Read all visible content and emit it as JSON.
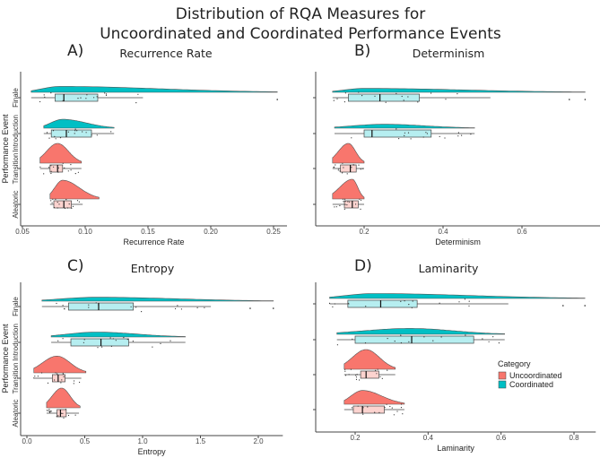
{
  "title_line1": "Distribution of RQA Measures for",
  "title_line2": "Uncoordinated and Coordinated Performance Events",
  "colors": {
    "Uncoordinated": "#F8766D",
    "Coordinated": "#00BFC4",
    "Uncoordinated_box": "#FCD3CF",
    "Coordinated_box": "#B6EEF0",
    "axis": "#444444"
  },
  "legend": {
    "title": "Category",
    "entries": [
      "Uncoordinated",
      "Coordinated"
    ],
    "placement": "right of panel D"
  },
  "chart_data": [
    {
      "type": "raincloud",
      "letter": "A)",
      "title": "Recurrence Rate",
      "xlabel": "Recurrence Rate",
      "ylabel": "Performance Event",
      "xlim": [
        0.05,
        0.255
      ],
      "ticks": [
        0.05,
        0.1,
        0.15,
        0.2,
        0.25
      ],
      "tick_labels": [
        "0.05",
        "0.10",
        "0.15",
        "0.20",
        "0.25"
      ],
      "groups": [
        {
          "name": "Finale",
          "category": "Coordinated",
          "min": 0.057,
          "q1": 0.076,
          "median": 0.083,
          "q3": 0.11,
          "max": 0.146,
          "outliers": [
            0.253
          ],
          "density_peak": 0.08,
          "density_range": [
            0.057,
            0.253
          ],
          "density_rel_height": 0.3
        },
        {
          "name": "Introduction",
          "category": "Coordinated",
          "min": 0.067,
          "q1": 0.073,
          "median": 0.085,
          "q3": 0.105,
          "max": 0.123,
          "outliers": [],
          "density_peak": 0.082,
          "density_range": [
            0.067,
            0.123
          ],
          "density_rel_height": 0.45
        },
        {
          "name": "Transition",
          "category": "Uncoordinated",
          "min": 0.064,
          "q1": 0.072,
          "median": 0.078,
          "q3": 0.082,
          "max": 0.097,
          "outliers": [],
          "density_peak": 0.078,
          "density_range": [
            0.064,
            0.097
          ],
          "density_rel_height": 1.0
        },
        {
          "name": "Aleatoric",
          "category": "Uncoordinated",
          "min": 0.072,
          "q1": 0.075,
          "median": 0.083,
          "q3": 0.089,
          "max": 0.098,
          "outliers": [],
          "density_peak": 0.082,
          "density_range": [
            0.072,
            0.111
          ],
          "density_rel_height": 0.95
        }
      ]
    },
    {
      "type": "raincloud",
      "letter": "B)",
      "title": "Determinism",
      "xlabel": "Determinism",
      "ylabel": "",
      "xlim": [
        0.1,
        0.78
      ],
      "ticks": [
        0.2,
        0.4,
        0.6
      ],
      "tick_labels": [
        "0.2",
        "0.4",
        "0.6"
      ],
      "groups": [
        {
          "name": "Finale",
          "category": "Coordinated",
          "min": 0.12,
          "q1": 0.16,
          "median": 0.24,
          "q3": 0.34,
          "max": 0.52,
          "outliers": [
            0.72,
            0.76
          ],
          "density_peak": 0.2,
          "density_range": [
            0.12,
            0.76
          ],
          "density_rel_height": 0.2
        },
        {
          "name": "Introduction",
          "category": "Coordinated",
          "min": 0.125,
          "q1": 0.2,
          "median": 0.22,
          "q3": 0.37,
          "max": 0.48,
          "outliers": [],
          "density_peak": 0.25,
          "density_range": [
            0.125,
            0.48
          ],
          "density_rel_height": 0.2
        },
        {
          "name": "Transition",
          "category": "Uncoordinated",
          "min": 0.12,
          "q1": 0.14,
          "median": 0.165,
          "q3": 0.18,
          "max": 0.2,
          "outliers": [],
          "density_peak": 0.16,
          "density_range": [
            0.12,
            0.2
          ],
          "density_rel_height": 1.0
        },
        {
          "name": "Aleatoric",
          "category": "Uncoordinated",
          "min": 0.12,
          "q1": 0.15,
          "median": 0.17,
          "q3": 0.185,
          "max": 0.2,
          "outliers": [],
          "density_peak": 0.17,
          "density_range": [
            0.12,
            0.2
          ],
          "density_rel_height": 1.0
        }
      ]
    },
    {
      "type": "raincloud",
      "letter": "C)",
      "title": "Entropy",
      "xlabel": "Entropy",
      "ylabel": "Performance Event",
      "xlim": [
        -0.05,
        2.15
      ],
      "ticks": [
        0.0,
        0.5,
        1.0,
        1.5,
        2.0
      ],
      "tick_labels": [
        "0.0",
        "0.5",
        "1.0",
        "1.5",
        "2.0"
      ],
      "groups": [
        {
          "name": "Finale",
          "category": "Coordinated",
          "min": 0.13,
          "q1": 0.36,
          "median": 0.62,
          "q3": 0.92,
          "max": 1.59,
          "outliers": [
            1.93,
            2.13
          ],
          "density_peak": 0.6,
          "density_range": [
            0.13,
            2.13
          ],
          "density_rel_height": 0.2
        },
        {
          "name": "Introduction",
          "category": "Coordinated",
          "min": 0.21,
          "q1": 0.38,
          "median": 0.64,
          "q3": 0.88,
          "max": 1.37,
          "outliers": [],
          "density_peak": 0.6,
          "density_range": [
            0.21,
            1.37
          ],
          "density_rel_height": 0.25
        },
        {
          "name": "Transition",
          "category": "Uncoordinated",
          "min": 0.06,
          "q1": 0.22,
          "median": 0.27,
          "q3": 0.33,
          "max": 0.47,
          "outliers": [],
          "density_peak": 0.26,
          "density_range": [
            0.06,
            0.51
          ],
          "density_rel_height": 0.85
        },
        {
          "name": "Aleatoric",
          "category": "Uncoordinated",
          "min": 0.17,
          "q1": 0.26,
          "median": 0.29,
          "q3": 0.34,
          "max": 0.45,
          "outliers": [],
          "density_peak": 0.3,
          "density_range": [
            0.17,
            0.46
          ],
          "density_rel_height": 1.0
        }
      ]
    },
    {
      "type": "raincloud",
      "letter": "D)",
      "title": "Laminarity",
      "xlabel": "Laminarity",
      "ylabel": "",
      "xlim": [
        0.1,
        0.84
      ],
      "ticks": [
        0.2,
        0.4,
        0.6,
        0.8
      ],
      "tick_labels": [
        "0.2",
        "0.4",
        "0.6",
        "0.8"
      ],
      "groups": [
        {
          "name": "Finale",
          "category": "Coordinated",
          "min": 0.13,
          "q1": 0.18,
          "median": 0.27,
          "q3": 0.37,
          "max": 0.62,
          "outliers": [
            0.77,
            0.83
          ],
          "density_peak": 0.25,
          "density_range": [
            0.13,
            0.83
          ],
          "density_rel_height": 0.25
        },
        {
          "name": "Introduction",
          "category": "Coordinated",
          "min": 0.15,
          "q1": 0.2,
          "median": 0.355,
          "q3": 0.525,
          "max": 0.61,
          "outliers": [],
          "density_peak": 0.35,
          "density_range": [
            0.15,
            0.61
          ],
          "density_rel_height": 0.3
        },
        {
          "name": "Transition",
          "category": "Uncoordinated",
          "min": 0.17,
          "q1": 0.215,
          "median": 0.23,
          "q3": 0.265,
          "max": 0.31,
          "outliers": [],
          "density_peak": 0.23,
          "density_range": [
            0.17,
            0.31
          ],
          "density_rel_height": 1.0
        },
        {
          "name": "Aleatoric",
          "category": "Uncoordinated",
          "min": 0.17,
          "q1": 0.195,
          "median": 0.22,
          "q3": 0.28,
          "max": 0.335,
          "outliers": [],
          "density_peak": 0.22,
          "density_range": [
            0.17,
            0.335
          ],
          "density_rel_height": 0.7
        }
      ]
    }
  ]
}
